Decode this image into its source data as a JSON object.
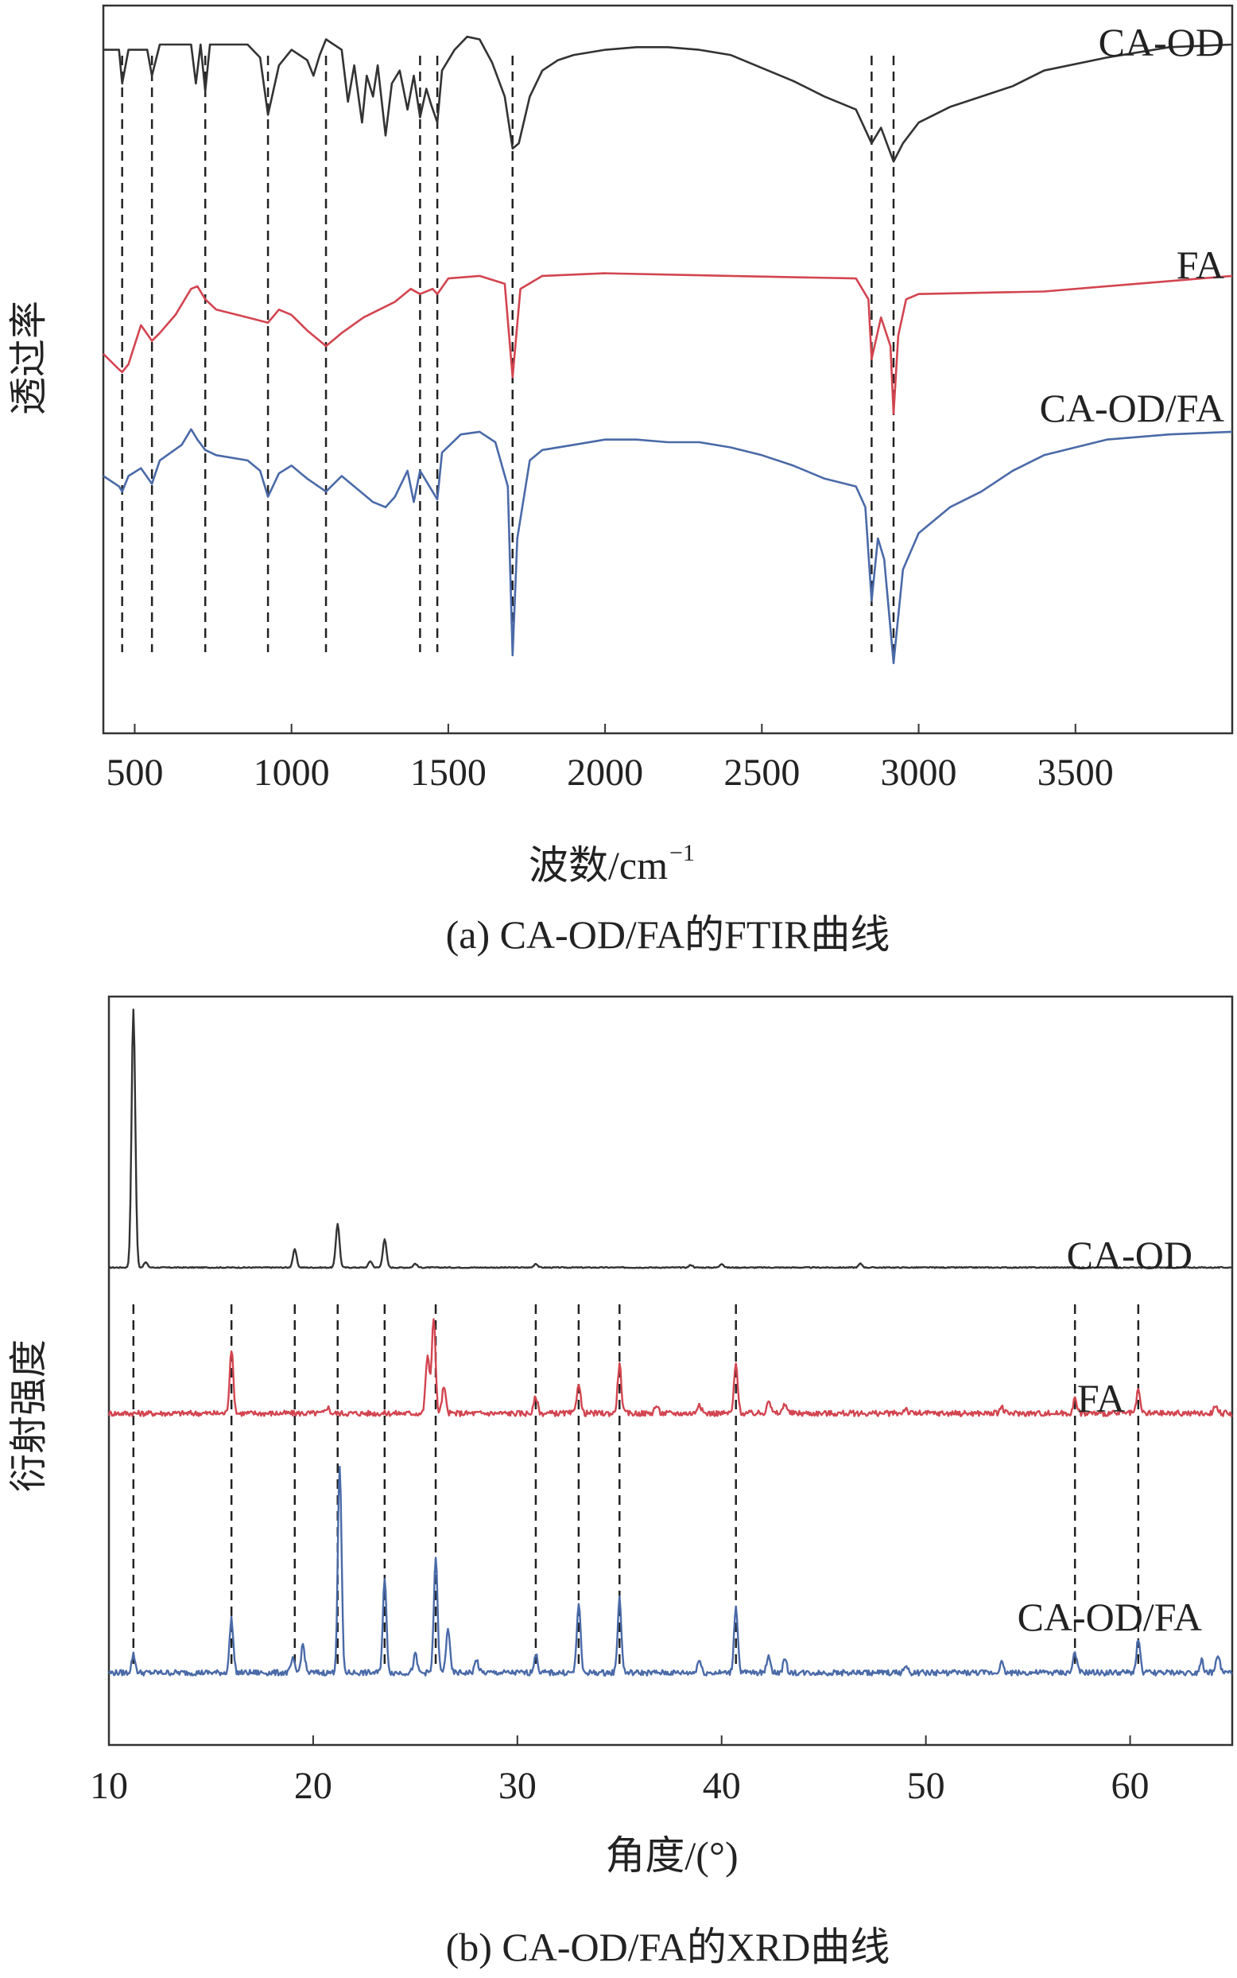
{
  "chart_data": [
    {
      "type": "line",
      "panel": "a",
      "caption": "(a) CA-OD/FA的FTIR曲线",
      "xlabel_base": "波数/cm",
      "xlabel_sup": "−1",
      "ylabel": "透过率",
      "xlim": [
        400,
        4000
      ],
      "x_ticks": [
        500,
        1000,
        1500,
        2000,
        2500,
        3000,
        3500
      ],
      "y_tick_labels": false,
      "reference_lines": [
        460,
        555,
        725,
        925,
        1110,
        1410,
        1465,
        1705,
        2850,
        2920
      ],
      "series": [
        {
          "name": "CA-OD",
          "color": "#333333",
          "points": [
            [
              400,
              88
            ],
            [
              450,
              88
            ],
            [
              460,
              75
            ],
            [
              480,
              88
            ],
            [
              540,
              88
            ],
            [
              555,
              78
            ],
            [
              580,
              90
            ],
            [
              680,
              90
            ],
            [
              695,
              75
            ],
            [
              710,
              90
            ],
            [
              725,
              72
            ],
            [
              740,
              90
            ],
            [
              860,
              90
            ],
            [
              900,
              85
            ],
            [
              925,
              63
            ],
            [
              960,
              82
            ],
            [
              1000,
              88
            ],
            [
              1050,
              84
            ],
            [
              1070,
              78
            ],
            [
              1090,
              86
            ],
            [
              1110,
              92
            ],
            [
              1160,
              88
            ],
            [
              1180,
              68
            ],
            [
              1200,
              82
            ],
            [
              1225,
              60
            ],
            [
              1240,
              78
            ],
            [
              1260,
              70
            ],
            [
              1275,
              82
            ],
            [
              1300,
              55
            ],
            [
              1320,
              75
            ],
            [
              1345,
              80
            ],
            [
              1370,
              65
            ],
            [
              1390,
              78
            ],
            [
              1410,
              62
            ],
            [
              1430,
              73
            ],
            [
              1445,
              67
            ],
            [
              1465,
              60
            ],
            [
              1480,
              80
            ],
            [
              1520,
              88
            ],
            [
              1560,
              93
            ],
            [
              1600,
              92
            ],
            [
              1640,
              83
            ],
            [
              1680,
              70
            ],
            [
              1705,
              50
            ],
            [
              1725,
              52
            ],
            [
              1760,
              70
            ],
            [
              1800,
              80
            ],
            [
              1850,
              84
            ],
            [
              1900,
              86
            ],
            [
              2000,
              88
            ],
            [
              2100,
              89
            ],
            [
              2200,
              89
            ],
            [
              2300,
              88
            ],
            [
              2400,
              86
            ],
            [
              2500,
              81
            ],
            [
              2600,
              76
            ],
            [
              2700,
              70
            ],
            [
              2800,
              65
            ],
            [
              2850,
              52
            ],
            [
              2880,
              58
            ],
            [
              2920,
              45
            ],
            [
              2950,
              52
            ],
            [
              3000,
              60
            ],
            [
              3100,
              66
            ],
            [
              3200,
              70
            ],
            [
              3300,
              74
            ],
            [
              3400,
              80
            ],
            [
              3600,
              85
            ],
            [
              3800,
              89
            ],
            [
              4000,
              90
            ]
          ]
        },
        {
          "name": "FA",
          "color": "#d24550",
          "points": [
            [
              400,
              -29
            ],
            [
              450,
              -35
            ],
            [
              460,
              -36
            ],
            [
              480,
              -33
            ],
            [
              520,
              -18
            ],
            [
              555,
              -24
            ],
            [
              580,
              -21
            ],
            [
              630,
              -14
            ],
            [
              680,
              -4
            ],
            [
              700,
              -3
            ],
            [
              725,
              -8
            ],
            [
              760,
              -12
            ],
            [
              860,
              -15
            ],
            [
              925,
              -17
            ],
            [
              960,
              -12
            ],
            [
              1000,
              -14
            ],
            [
              1050,
              -20
            ],
            [
              1110,
              -26
            ],
            [
              1160,
              -21
            ],
            [
              1230,
              -15
            ],
            [
              1280,
              -12
            ],
            [
              1330,
              -9
            ],
            [
              1380,
              -4
            ],
            [
              1410,
              -6
            ],
            [
              1450,
              -4
            ],
            [
              1465,
              -6
            ],
            [
              1500,
              0
            ],
            [
              1600,
              1
            ],
            [
              1680,
              -2
            ],
            [
              1705,
              -38
            ],
            [
              1730,
              -4
            ],
            [
              1800,
              1
            ],
            [
              2000,
              2
            ],
            [
              2400,
              1
            ],
            [
              2800,
              0
            ],
            [
              2840,
              -8
            ],
            [
              2850,
              -31
            ],
            [
              2880,
              -15
            ],
            [
              2910,
              -26
            ],
            [
              2920,
              -52
            ],
            [
              2935,
              -22
            ],
            [
              2960,
              -8
            ],
            [
              3000,
              -6
            ],
            [
              3400,
              -5
            ],
            [
              3800,
              -1
            ],
            [
              4000,
              1
            ]
          ]
        },
        {
          "name": "CA-OD/FA",
          "color": "#4a6aa8",
          "points": [
            [
              400,
              -76
            ],
            [
              450,
              -80
            ],
            [
              460,
              -82
            ],
            [
              480,
              -76
            ],
            [
              520,
              -73
            ],
            [
              555,
              -79
            ],
            [
              580,
              -70
            ],
            [
              650,
              -64
            ],
            [
              680,
              -58
            ],
            [
              700,
              -62
            ],
            [
              725,
              -66
            ],
            [
              760,
              -68
            ],
            [
              860,
              -70
            ],
            [
              900,
              -74
            ],
            [
              925,
              -84
            ],
            [
              960,
              -75
            ],
            [
              1000,
              -72
            ],
            [
              1050,
              -77
            ],
            [
              1110,
              -82
            ],
            [
              1160,
              -76
            ],
            [
              1200,
              -80
            ],
            [
              1260,
              -86
            ],
            [
              1300,
              -88
            ],
            [
              1330,
              -84
            ],
            [
              1370,
              -74
            ],
            [
              1390,
              -86
            ],
            [
              1410,
              -74
            ],
            [
              1440,
              -80
            ],
            [
              1465,
              -85
            ],
            [
              1480,
              -67
            ],
            [
              1540,
              -60
            ],
            [
              1600,
              -59
            ],
            [
              1650,
              -63
            ],
            [
              1690,
              -80
            ],
            [
              1705,
              -145
            ],
            [
              1720,
              -100
            ],
            [
              1760,
              -70
            ],
            [
              1800,
              -66
            ],
            [
              1900,
              -64
            ],
            [
              2000,
              -62
            ],
            [
              2100,
              -62
            ],
            [
              2200,
              -63
            ],
            [
              2300,
              -63
            ],
            [
              2400,
              -65
            ],
            [
              2500,
              -68
            ],
            [
              2600,
              -72
            ],
            [
              2700,
              -77
            ],
            [
              2800,
              -80
            ],
            [
              2830,
              -88
            ],
            [
              2850,
              -124
            ],
            [
              2870,
              -100
            ],
            [
              2890,
              -108
            ],
            [
              2920,
              -148
            ],
            [
              2950,
              -112
            ],
            [
              3000,
              -98
            ],
            [
              3100,
              -88
            ],
            [
              3200,
              -82
            ],
            [
              3300,
              -74
            ],
            [
              3400,
              -68
            ],
            [
              3600,
              -62
            ],
            [
              3800,
              -60
            ],
            [
              4000,
              -59
            ]
          ]
        }
      ]
    },
    {
      "type": "line",
      "panel": "b",
      "caption": "(b) CA-OD/FA的XRD曲线",
      "xlabel": "角度/(°)",
      "ylabel": "衍射强度",
      "xlim": [
        10,
        65
      ],
      "x_ticks": [
        10,
        20,
        30,
        40,
        50,
        60
      ],
      "y_tick_labels": false,
      "reference_lines": [
        11.2,
        16.0,
        19.1,
        21.2,
        23.5,
        26.0,
        30.9,
        33.0,
        35.0,
        40.7,
        57.3,
        60.4
      ],
      "series": [
        {
          "name": "CA-OD",
          "color": "#333333",
          "baseline": 0,
          "peaks": [
            [
              11.2,
              200
            ],
            [
              11.8,
              4
            ],
            [
              19.1,
              14
            ],
            [
              21.2,
              34
            ],
            [
              22.8,
              5
            ],
            [
              23.5,
              22
            ],
            [
              25.0,
              3
            ],
            [
              30.9,
              3
            ],
            [
              38.5,
              2
            ],
            [
              40.0,
              3
            ],
            [
              46.8,
              3
            ]
          ]
        },
        {
          "name": "FA",
          "color": "#d24550",
          "baseline": -113,
          "peaks": [
            [
              16.0,
              50
            ],
            [
              20.7,
              5
            ],
            [
              25.6,
              45
            ],
            [
              25.9,
              75
            ],
            [
              26.4,
              20
            ],
            [
              30.9,
              13
            ],
            [
              33.0,
              24
            ],
            [
              35.0,
              38
            ],
            [
              36.8,
              6
            ],
            [
              38.9,
              8
            ],
            [
              40.7,
              38
            ],
            [
              42.3,
              11
            ],
            [
              43.1,
              8
            ],
            [
              49.0,
              4
            ],
            [
              53.7,
              5
            ],
            [
              57.3,
              11
            ],
            [
              60.4,
              17
            ],
            [
              64.2,
              7
            ]
          ]
        },
        {
          "name": "CA-OD/FA",
          "color": "#4a6aa8",
          "baseline": -314,
          "peaks": [
            [
              11.2,
              14
            ],
            [
              16.0,
              42
            ],
            [
              19.0,
              10
            ],
            [
              19.5,
              22
            ],
            [
              21.3,
              160
            ],
            [
              23.5,
              72
            ],
            [
              25.0,
              14
            ],
            [
              26.0,
              90
            ],
            [
              26.6,
              35
            ],
            [
              28.0,
              10
            ],
            [
              30.9,
              14
            ],
            [
              33.0,
              54
            ],
            [
              35.0,
              58
            ],
            [
              38.9,
              10
            ],
            [
              40.7,
              52
            ],
            [
              42.3,
              14
            ],
            [
              43.1,
              10
            ],
            [
              49.0,
              5
            ],
            [
              53.7,
              8
            ],
            [
              57.3,
              16
            ],
            [
              60.4,
              26
            ],
            [
              63.5,
              10
            ],
            [
              64.3,
              14
            ]
          ]
        }
      ]
    }
  ]
}
